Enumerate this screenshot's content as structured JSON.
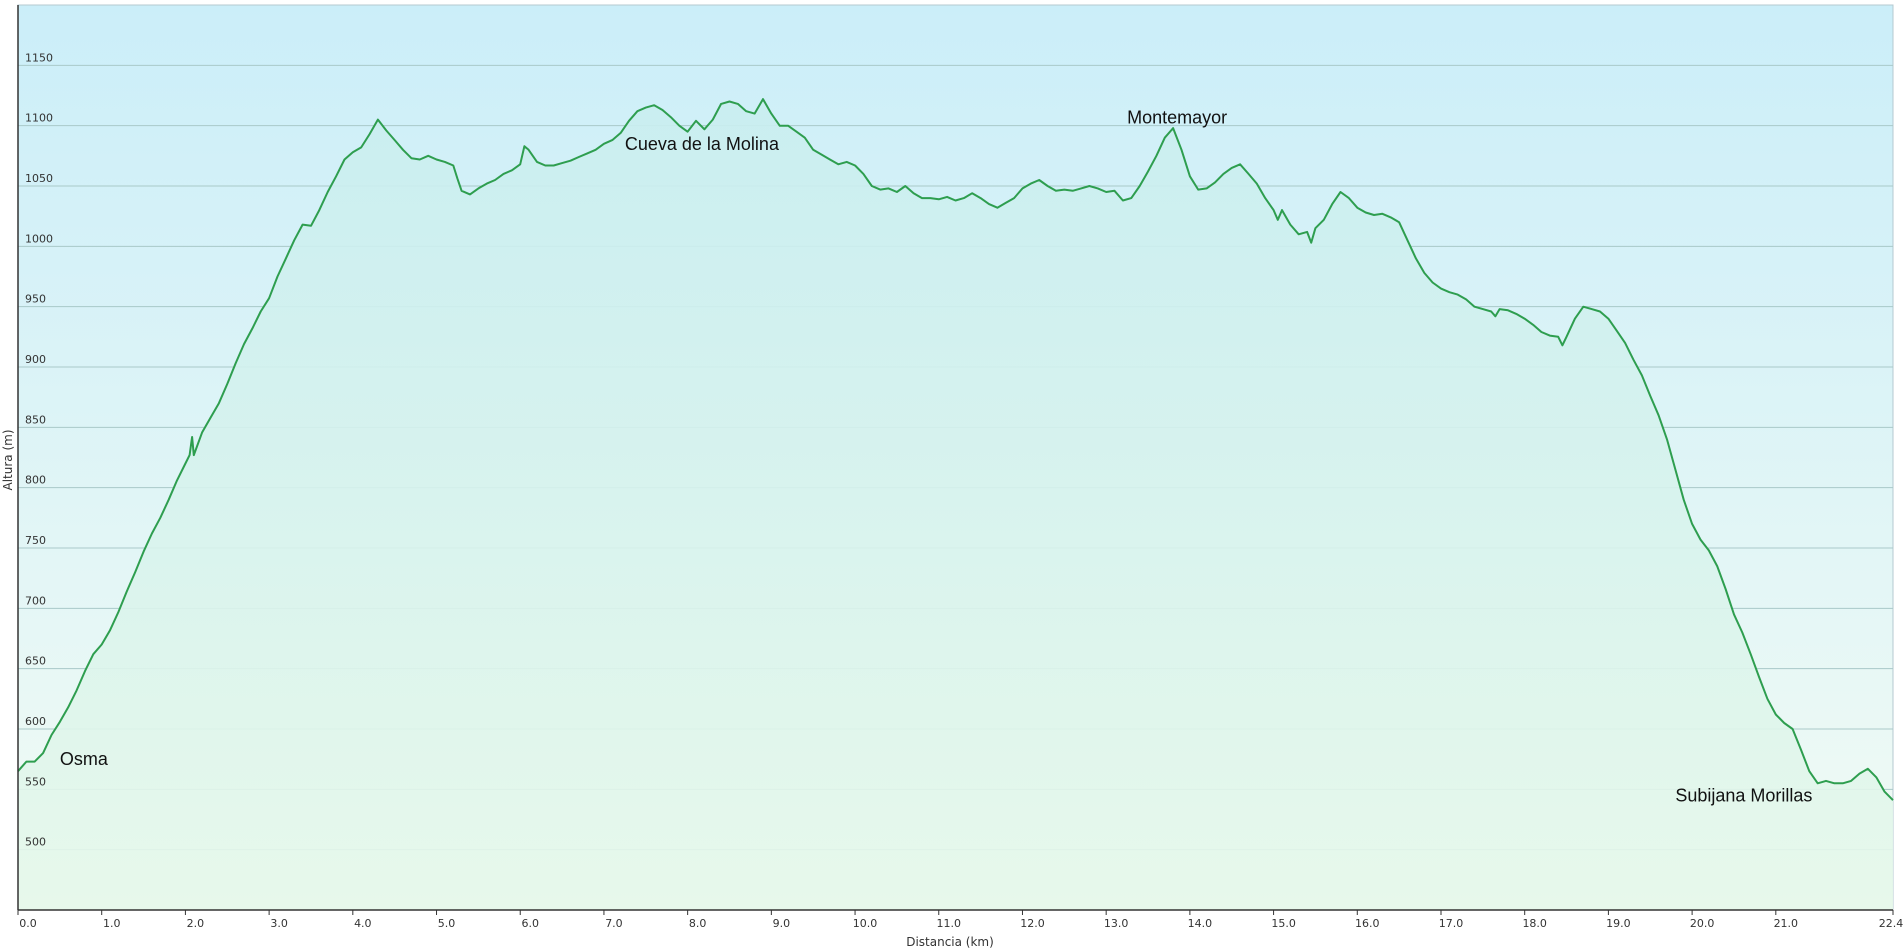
{
  "chart_data": {
    "type": "area",
    "title": "",
    "xlabel": "Distancia  (km)",
    "ylabel": "Altura (m)",
    "xlim": [
      0,
      22.4
    ],
    "ylim": [
      450,
      1200
    ],
    "grid": true,
    "colors": {
      "line": "#2e9e4f",
      "fill_top": "#c9eef0",
      "fill_bottom": "#e6f8ea",
      "bg_top": "#cbeef9",
      "bg_bottom": "#f2fbf4",
      "grid": "#a9c9c9"
    },
    "x_ticks": [
      {
        "value": 0.0,
        "label": "0.0"
      },
      {
        "value": 1.0,
        "label": "1.0"
      },
      {
        "value": 2.0,
        "label": "2.0"
      },
      {
        "value": 3.0,
        "label": "3.0"
      },
      {
        "value": 4.0,
        "label": "4.0"
      },
      {
        "value": 5.0,
        "label": "5.0"
      },
      {
        "value": 6.0,
        "label": "6.0"
      },
      {
        "value": 7.0,
        "label": "7.0"
      },
      {
        "value": 8.0,
        "label": "8.0"
      },
      {
        "value": 9.0,
        "label": "9.0"
      },
      {
        "value": 10.0,
        "label": "10.0"
      },
      {
        "value": 11.0,
        "label": "11.0"
      },
      {
        "value": 12.0,
        "label": "12.0"
      },
      {
        "value": 13.0,
        "label": "13.0"
      },
      {
        "value": 14.0,
        "label": "14.0"
      },
      {
        "value": 15.0,
        "label": "15.0"
      },
      {
        "value": 16.0,
        "label": "16.0"
      },
      {
        "value": 17.0,
        "label": "17.0"
      },
      {
        "value": 18.0,
        "label": "18.0"
      },
      {
        "value": 19.0,
        "label": "19.0"
      },
      {
        "value": 20.0,
        "label": "20.0"
      },
      {
        "value": 21.0,
        "label": "21.0"
      },
      {
        "value": 22.4,
        "label": "22.4"
      }
    ],
    "y_ticks": [
      {
        "value": 500,
        "label": "500"
      },
      {
        "value": 550,
        "label": "550"
      },
      {
        "value": 600,
        "label": "600"
      },
      {
        "value": 650,
        "label": "650"
      },
      {
        "value": 700,
        "label": "700"
      },
      {
        "value": 750,
        "label": "750"
      },
      {
        "value": 800,
        "label": "800"
      },
      {
        "value": 850,
        "label": "850"
      },
      {
        "value": 900,
        "label": "900"
      },
      {
        "value": 950,
        "label": "950"
      },
      {
        "value": 1000,
        "label": "1000"
      },
      {
        "value": 1050,
        "label": "1050"
      },
      {
        "value": 1100,
        "label": "1100"
      },
      {
        "value": 1150,
        "label": "1150"
      }
    ],
    "annotations": [
      {
        "text": "Osma",
        "x": 0.5,
        "y": 570
      },
      {
        "text": "Cueva de la Molina",
        "x": 7.25,
        "y": 1080
      },
      {
        "text": "Montemayor",
        "x": 13.25,
        "y": 1102
      },
      {
        "text": "Subijana  Morillas",
        "x": 19.8,
        "y": 540
      }
    ],
    "series": [
      {
        "points": [
          [
            0.0,
            565
          ],
          [
            0.1,
            573
          ],
          [
            0.2,
            573
          ],
          [
            0.3,
            580
          ],
          [
            0.4,
            595
          ],
          [
            0.5,
            606
          ],
          [
            0.6,
            618
          ],
          [
            0.7,
            632
          ],
          [
            0.8,
            648
          ],
          [
            0.9,
            662
          ],
          [
            1.0,
            670
          ],
          [
            1.1,
            682
          ],
          [
            1.2,
            697
          ],
          [
            1.3,
            714
          ],
          [
            1.4,
            730
          ],
          [
            1.5,
            747
          ],
          [
            1.6,
            762
          ],
          [
            1.7,
            775
          ],
          [
            1.8,
            790
          ],
          [
            1.9,
            806
          ],
          [
            2.0,
            820
          ],
          [
            2.05,
            827
          ],
          [
            2.08,
            842
          ],
          [
            2.1,
            827
          ],
          [
            2.2,
            846
          ],
          [
            2.3,
            858
          ],
          [
            2.4,
            870
          ],
          [
            2.5,
            886
          ],
          [
            2.6,
            903
          ],
          [
            2.7,
            919
          ],
          [
            2.8,
            932
          ],
          [
            2.9,
            946
          ],
          [
            3.0,
            957
          ],
          [
            3.1,
            975
          ],
          [
            3.2,
            990
          ],
          [
            3.3,
            1005
          ],
          [
            3.4,
            1018
          ],
          [
            3.5,
            1017
          ],
          [
            3.6,
            1030
          ],
          [
            3.7,
            1045
          ],
          [
            3.8,
            1058
          ],
          [
            3.9,
            1072
          ],
          [
            4.0,
            1078
          ],
          [
            4.1,
            1082
          ],
          [
            4.2,
            1093
          ],
          [
            4.3,
            1105
          ],
          [
            4.4,
            1096
          ],
          [
            4.5,
            1088
          ],
          [
            4.6,
            1080
          ],
          [
            4.7,
            1073
          ],
          [
            4.8,
            1072
          ],
          [
            4.9,
            1075
          ],
          [
            5.0,
            1072
          ],
          [
            5.1,
            1070
          ],
          [
            5.2,
            1067
          ],
          [
            5.25,
            1056
          ],
          [
            5.3,
            1046
          ],
          [
            5.4,
            1043
          ],
          [
            5.5,
            1048
          ],
          [
            5.6,
            1052
          ],
          [
            5.7,
            1055
          ],
          [
            5.8,
            1060
          ],
          [
            5.9,
            1063
          ],
          [
            6.0,
            1068
          ],
          [
            6.05,
            1083
          ],
          [
            6.1,
            1080
          ],
          [
            6.2,
            1070
          ],
          [
            6.3,
            1067
          ],
          [
            6.4,
            1067
          ],
          [
            6.5,
            1069
          ],
          [
            6.6,
            1071
          ],
          [
            6.7,
            1074
          ],
          [
            6.8,
            1077
          ],
          [
            6.9,
            1080
          ],
          [
            7.0,
            1085
          ],
          [
            7.1,
            1088
          ],
          [
            7.2,
            1094
          ],
          [
            7.3,
            1104
          ],
          [
            7.4,
            1112
          ],
          [
            7.5,
            1115
          ],
          [
            7.6,
            1117
          ],
          [
            7.7,
            1113
          ],
          [
            7.8,
            1107
          ],
          [
            7.9,
            1100
          ],
          [
            8.0,
            1095
          ],
          [
            8.1,
            1104
          ],
          [
            8.2,
            1097
          ],
          [
            8.3,
            1105
          ],
          [
            8.4,
            1118
          ],
          [
            8.5,
            1120
          ],
          [
            8.6,
            1118
          ],
          [
            8.7,
            1112
          ],
          [
            8.8,
            1110
          ],
          [
            8.9,
            1122
          ],
          [
            9.0,
            1110
          ],
          [
            9.1,
            1100
          ],
          [
            9.2,
            1100
          ],
          [
            9.3,
            1095
          ],
          [
            9.4,
            1090
          ],
          [
            9.5,
            1080
          ],
          [
            9.6,
            1076
          ],
          [
            9.7,
            1072
          ],
          [
            9.8,
            1068
          ],
          [
            9.9,
            1070
          ],
          [
            10.0,
            1067
          ],
          [
            10.1,
            1060
          ],
          [
            10.2,
            1050
          ],
          [
            10.3,
            1047
          ],
          [
            10.4,
            1048
          ],
          [
            10.5,
            1045
          ],
          [
            10.6,
            1050
          ],
          [
            10.7,
            1044
          ],
          [
            10.8,
            1040
          ],
          [
            10.9,
            1040
          ],
          [
            11.0,
            1039
          ],
          [
            11.1,
            1041
          ],
          [
            11.2,
            1038
          ],
          [
            11.3,
            1040
          ],
          [
            11.4,
            1044
          ],
          [
            11.5,
            1040
          ],
          [
            11.6,
            1035
          ],
          [
            11.7,
            1032
          ],
          [
            11.8,
            1036
          ],
          [
            11.9,
            1040
          ],
          [
            12.0,
            1048
          ],
          [
            12.1,
            1052
          ],
          [
            12.2,
            1055
          ],
          [
            12.3,
            1050
          ],
          [
            12.4,
            1046
          ],
          [
            12.5,
            1047
          ],
          [
            12.6,
            1046
          ],
          [
            12.7,
            1048
          ],
          [
            12.8,
            1050
          ],
          [
            12.9,
            1048
          ],
          [
            13.0,
            1045
          ],
          [
            13.1,
            1046
          ],
          [
            13.2,
            1038
          ],
          [
            13.3,
            1040
          ],
          [
            13.4,
            1050
          ],
          [
            13.5,
            1062
          ],
          [
            13.6,
            1075
          ],
          [
            13.7,
            1090
          ],
          [
            13.8,
            1098
          ],
          [
            13.9,
            1080
          ],
          [
            14.0,
            1058
          ],
          [
            14.1,
            1047
          ],
          [
            14.2,
            1048
          ],
          [
            14.3,
            1053
          ],
          [
            14.4,
            1060
          ],
          [
            14.5,
            1065
          ],
          [
            14.6,
            1068
          ],
          [
            14.7,
            1060
          ],
          [
            14.8,
            1052
          ],
          [
            14.9,
            1040
          ],
          [
            15.0,
            1030
          ],
          [
            15.05,
            1022
          ],
          [
            15.1,
            1030
          ],
          [
            15.2,
            1018
          ],
          [
            15.3,
            1010
          ],
          [
            15.4,
            1012
          ],
          [
            15.45,
            1003
          ],
          [
            15.5,
            1015
          ],
          [
            15.6,
            1022
          ],
          [
            15.7,
            1035
          ],
          [
            15.8,
            1045
          ],
          [
            15.9,
            1040
          ],
          [
            16.0,
            1032
          ],
          [
            16.1,
            1028
          ],
          [
            16.2,
            1026
          ],
          [
            16.3,
            1027
          ],
          [
            16.4,
            1024
          ],
          [
            16.5,
            1020
          ],
          [
            16.6,
            1005
          ],
          [
            16.7,
            990
          ],
          [
            16.8,
            978
          ],
          [
            16.9,
            970
          ],
          [
            17.0,
            965
          ],
          [
            17.1,
            962
          ],
          [
            17.2,
            960
          ],
          [
            17.3,
            956
          ],
          [
            17.4,
            950
          ],
          [
            17.5,
            948
          ],
          [
            17.6,
            946
          ],
          [
            17.65,
            942
          ],
          [
            17.7,
            948
          ],
          [
            17.8,
            947
          ],
          [
            17.9,
            944
          ],
          [
            18.0,
            940
          ],
          [
            18.1,
            935
          ],
          [
            18.2,
            929
          ],
          [
            18.3,
            926
          ],
          [
            18.4,
            925
          ],
          [
            18.45,
            918
          ],
          [
            18.5,
            925
          ],
          [
            18.6,
            940
          ],
          [
            18.7,
            950
          ],
          [
            18.8,
            948
          ],
          [
            18.9,
            946
          ],
          [
            19.0,
            940
          ],
          [
            19.1,
            930
          ],
          [
            19.2,
            920
          ],
          [
            19.3,
            906
          ],
          [
            19.4,
            893
          ],
          [
            19.5,
            876
          ],
          [
            19.6,
            860
          ],
          [
            19.7,
            840
          ],
          [
            19.8,
            815
          ],
          [
            19.9,
            790
          ],
          [
            20.0,
            770
          ],
          [
            20.1,
            757
          ],
          [
            20.2,
            748
          ],
          [
            20.3,
            735
          ],
          [
            20.4,
            716
          ],
          [
            20.5,
            695
          ],
          [
            20.6,
            680
          ],
          [
            20.7,
            662
          ],
          [
            20.8,
            643
          ],
          [
            20.9,
            625
          ],
          [
            21.0,
            612
          ],
          [
            21.1,
            605
          ],
          [
            21.2,
            600
          ],
          [
            21.3,
            583
          ],
          [
            21.4,
            565
          ],
          [
            21.5,
            555
          ],
          [
            21.6,
            557
          ],
          [
            21.7,
            555
          ],
          [
            21.8,
            555
          ],
          [
            21.9,
            557
          ],
          [
            22.0,
            563
          ],
          [
            22.1,
            567
          ],
          [
            22.2,
            560
          ],
          [
            22.3,
            548
          ],
          [
            22.4,
            541
          ]
        ]
      }
    ]
  }
}
